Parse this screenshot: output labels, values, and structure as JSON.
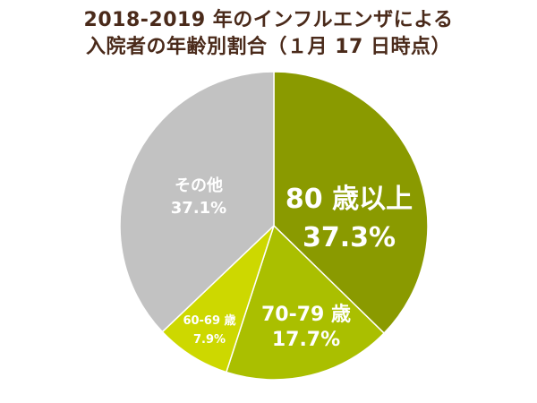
{
  "chart_data": {
    "type": "pie",
    "title_line1": "2018-2019 年のインフルエンザによる",
    "title_line2": "入院者の年齢別割合（１月 17 日時点）",
    "start": "12 o'clock",
    "direction": "clockwise",
    "slices": [
      {
        "name": "80 歳以上",
        "value": 37.3,
        "label": "37.3%",
        "color": "#8a9a00"
      },
      {
        "name": "70-79 歳",
        "value": 17.7,
        "label": "17.7%",
        "color": "#aabf00"
      },
      {
        "name": "60-69 歳",
        "value": 7.9,
        "label": "7.9%",
        "color": "#cdd800"
      },
      {
        "name": "その他",
        "value": 37.1,
        "label": "37.1%",
        "color": "#c2c2c2"
      }
    ]
  }
}
